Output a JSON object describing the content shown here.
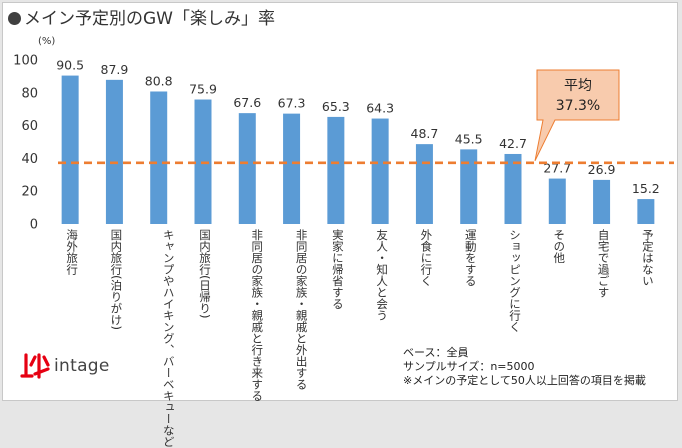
{
  "header": {
    "title": "メイン予定別のGW「楽しみ」率"
  },
  "chart_data": {
    "type": "bar",
    "title": "メイン予定別のGW「楽しみ」率",
    "unit_label": "(%)",
    "ylim": [
      0,
      100
    ],
    "yticks": [
      0,
      20,
      40,
      60,
      80,
      100
    ],
    "categories": [
      "海外旅行",
      "国内旅行(泊りがけ)",
      "キャンプやハイキング、バーベキューなど",
      "国内旅行(日帰り)",
      "非同居の家族・親戚と行き来する",
      "非同居の家族・親戚と外出する",
      "実家に帰省する",
      "友人・知人と会う",
      "外食に行く",
      "運動をする",
      "ショッピングに行く",
      "その他",
      "自宅で過ごす",
      "予定はない"
    ],
    "values": [
      90.5,
      87.9,
      80.8,
      75.9,
      67.6,
      67.3,
      65.3,
      64.3,
      48.7,
      45.5,
      42.7,
      27.7,
      26.9,
      15.2
    ],
    "bar_color": "#5b9bd5",
    "average": {
      "label": "平均",
      "value": 37.3,
      "value_label": "37.3%",
      "line_color": "#ed7d31",
      "box_color": "#f8cbad"
    }
  },
  "logo": {
    "text": "intage"
  },
  "notes": [
    "ベース：全員",
    "サンプルサイズ：n=5000",
    "※メインの予定として50人以上回答の項目を掲載"
  ]
}
